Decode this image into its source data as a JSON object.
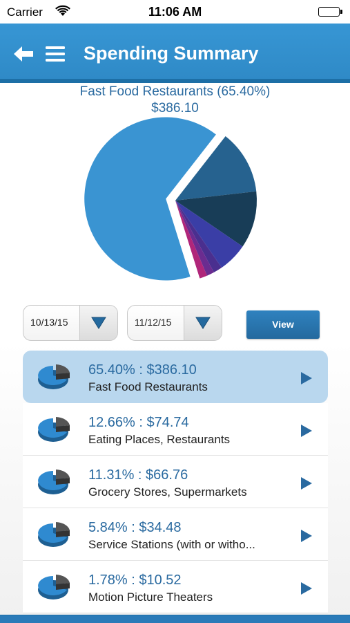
{
  "status_bar": {
    "carrier": "Carrier",
    "time": "11:06 AM"
  },
  "nav": {
    "title": "Spending Summary",
    "back_icon": "back-arrow-icon",
    "menu_icon": "hamburger-menu-icon"
  },
  "chart_data": {
    "type": "pie",
    "title": "Fast Food Restaurants (65.40%)",
    "subtitle": "$386.10",
    "exploded": "Fast Food Restaurants",
    "slices": [
      {
        "label": "Fast Food Restaurants",
        "percent": 65.4,
        "value": 386.1,
        "color": "#3a94d2"
      },
      {
        "label": "Eating Places, Restaurants",
        "percent": 12.66,
        "value": 74.74,
        "color": "#26628f"
      },
      {
        "label": "Grocery Stores, Supermarkets",
        "percent": 11.31,
        "value": 66.76,
        "color": "#183d57"
      },
      {
        "label": "Service Stations (with or witho...",
        "percent": 5.84,
        "value": 34.48,
        "color": "#3a3ea6"
      },
      {
        "label": "Motion Picture Theaters",
        "percent": 1.78,
        "value": 10.52,
        "color": "#4a2f8f"
      },
      {
        "label": "",
        "percent": 1.5,
        "color": "#6b2c90"
      },
      {
        "label": "",
        "percent": 1.51,
        "color": "#b0267a"
      }
    ]
  },
  "filters": {
    "start_date": "10/13/15",
    "end_date": "11/12/15",
    "view_label": "View"
  },
  "list": {
    "items": [
      {
        "pct": "65.40% : $386.10",
        "name": "Fast Food Restaurants",
        "selected": true
      },
      {
        "pct": "12.66% : $74.74",
        "name": "Eating Places, Restaurants",
        "selected": false
      },
      {
        "pct": "11.31% : $66.76",
        "name": "Grocery Stores, Supermarkets",
        "selected": false
      },
      {
        "pct": "5.84% : $34.48",
        "name": "Service Stations (with or witho...",
        "selected": false
      },
      {
        "pct": "1.78% : $10.52",
        "name": "Motion Picture Theaters",
        "selected": false
      }
    ]
  },
  "colors": {
    "accent": "#2f8ac7",
    "text_blue": "#2a6aa0",
    "selected_row": "#b9d7ee"
  }
}
